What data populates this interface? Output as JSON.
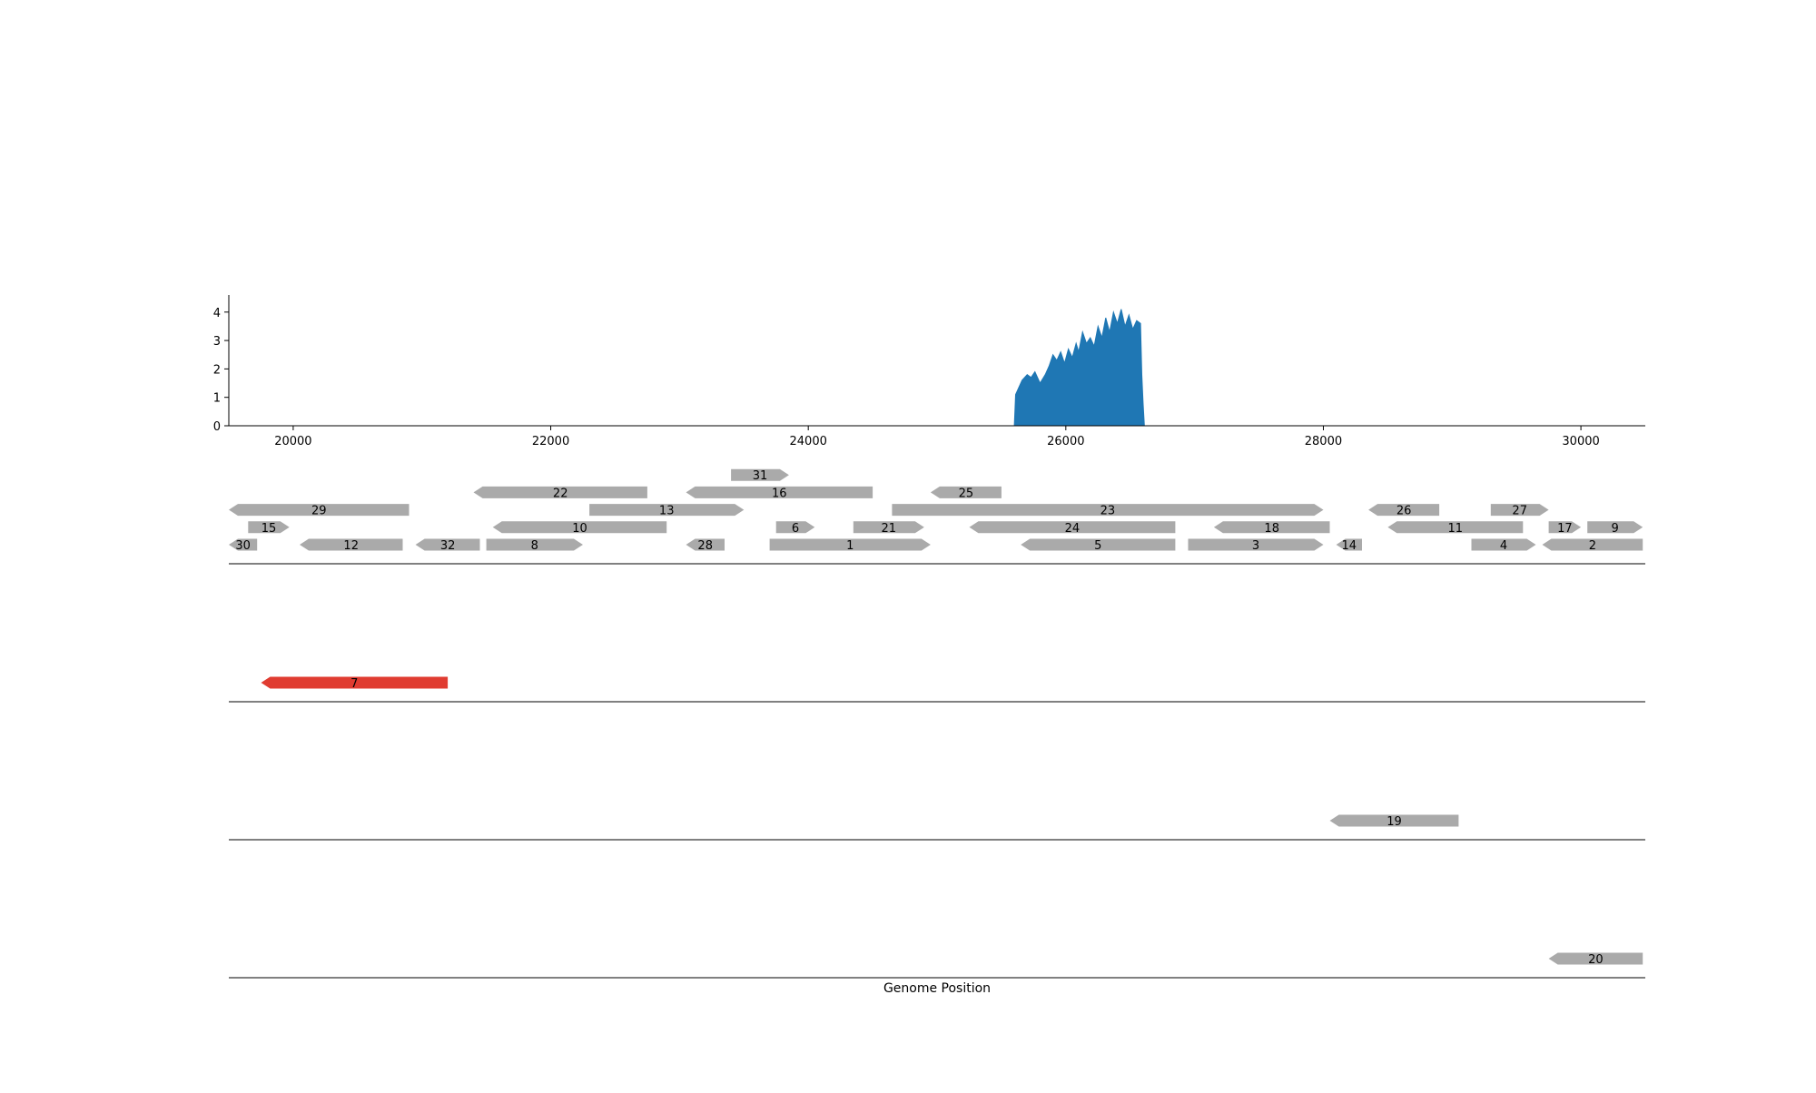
{
  "chart_data": {
    "type": "area",
    "xlabel": "Genome Position",
    "ylabel": "",
    "title": "",
    "xlim": [
      19500,
      30500
    ],
    "ylim": [
      0,
      4.6
    ],
    "x_ticks": [
      20000,
      22000,
      24000,
      26000,
      28000,
      30000
    ],
    "y_ticks": [
      0,
      1,
      2,
      3,
      4
    ],
    "colors": {
      "coverage": "#1f77b4",
      "gene": "#aaaaaa",
      "highlight": "#e03c31",
      "axis": "#000000"
    },
    "coverage": {
      "x": [
        19500,
        25600,
        25610,
        25630,
        25660,
        25700,
        25730,
        25760,
        25800,
        25840,
        25870,
        25900,
        25930,
        25960,
        25990,
        26020,
        26050,
        26080,
        26100,
        26130,
        26160,
        26190,
        26220,
        26250,
        26280,
        26310,
        26340,
        26370,
        26400,
        26430,
        26460,
        26490,
        26520,
        26550,
        26580,
        26590,
        26600,
        26610,
        30500
      ],
      "y": [
        0,
        0,
        1.1,
        1.3,
        1.6,
        1.8,
        1.7,
        1.9,
        1.5,
        1.8,
        2.1,
        2.5,
        2.3,
        2.6,
        2.2,
        2.7,
        2.4,
        2.9,
        2.6,
        3.3,
        2.9,
        3.1,
        2.8,
        3.5,
        3.1,
        3.8,
        3.3,
        4.0,
        3.6,
        4.1,
        3.5,
        3.9,
        3.4,
        3.7,
        3.6,
        1.8,
        0.8,
        0,
        0
      ]
    },
    "tracks": [
      {
        "genes": [
          {
            "label": "31",
            "start": 23400,
            "end": 23850,
            "strand": "+",
            "row": 4
          },
          {
            "label": "22",
            "start": 21400,
            "end": 22750,
            "strand": "-",
            "row": 3
          },
          {
            "label": "16",
            "start": 23050,
            "end": 24500,
            "strand": "-",
            "row": 3
          },
          {
            "label": "25",
            "start": 24950,
            "end": 25500,
            "strand": "-",
            "row": 3
          },
          {
            "label": "29",
            "start": 19500,
            "end": 20900,
            "strand": "-",
            "row": 2
          },
          {
            "label": "13",
            "start": 22300,
            "end": 23500,
            "strand": "+",
            "row": 2
          },
          {
            "label": "23",
            "start": 24650,
            "end": 28000,
            "strand": "+",
            "row": 2
          },
          {
            "label": "26",
            "start": 28350,
            "end": 28900,
            "strand": "-",
            "row": 2
          },
          {
            "label": "27",
            "start": 29300,
            "end": 29750,
            "strand": "+",
            "row": 2
          },
          {
            "label": "15",
            "start": 19650,
            "end": 19970,
            "strand": "+",
            "row": 1
          },
          {
            "label": "10",
            "start": 21550,
            "end": 22900,
            "strand": "-",
            "row": 1
          },
          {
            "label": "6",
            "start": 23750,
            "end": 24050,
            "strand": "+",
            "row": 1
          },
          {
            "label": "21",
            "start": 24350,
            "end": 24900,
            "strand": "+",
            "row": 1
          },
          {
            "label": "24",
            "start": 25250,
            "end": 26850,
            "strand": "-",
            "row": 1
          },
          {
            "label": "18",
            "start": 27150,
            "end": 28050,
            "strand": "-",
            "row": 1
          },
          {
            "label": "11",
            "start": 28500,
            "end": 29550,
            "strand": "-",
            "row": 1
          },
          {
            "label": "17",
            "start": 29750,
            "end": 30000,
            "strand": "+",
            "row": 1
          },
          {
            "label": "9",
            "start": 30050,
            "end": 30480,
            "strand": "+",
            "row": 1
          },
          {
            "label": "30",
            "start": 19500,
            "end": 19720,
            "strand": "-",
            "row": 0
          },
          {
            "label": "12",
            "start": 20050,
            "end": 20850,
            "strand": "-",
            "row": 0
          },
          {
            "label": "32",
            "start": 20950,
            "end": 21450,
            "strand": "-",
            "row": 0
          },
          {
            "label": "8",
            "start": 21500,
            "end": 22250,
            "strand": "+",
            "row": 0
          },
          {
            "label": "28",
            "start": 23050,
            "end": 23350,
            "strand": "-",
            "row": 0
          },
          {
            "label": "1",
            "start": 23700,
            "end": 24950,
            "strand": "+",
            "row": 0
          },
          {
            "label": "5",
            "start": 25650,
            "end": 26850,
            "strand": "-",
            "row": 0
          },
          {
            "label": "3",
            "start": 26950,
            "end": 28000,
            "strand": "+",
            "row": 0
          },
          {
            "label": "14",
            "start": 28100,
            "end": 28300,
            "strand": "-",
            "row": 0
          },
          {
            "label": "4",
            "start": 29150,
            "end": 29650,
            "strand": "+",
            "row": 0
          },
          {
            "label": "2",
            "start": 29700,
            "end": 30480,
            "strand": "-",
            "row": 0
          }
        ]
      },
      {
        "genes": [
          {
            "label": "7",
            "start": 19750,
            "end": 21200,
            "strand": "-",
            "row": 0,
            "highlight": true
          }
        ]
      },
      {
        "genes": [
          {
            "label": "19",
            "start": 28050,
            "end": 29050,
            "strand": "-",
            "row": 0
          }
        ]
      },
      {
        "genes": [
          {
            "label": "20",
            "start": 29750,
            "end": 30480,
            "strand": "-",
            "row": 0
          }
        ]
      }
    ]
  }
}
